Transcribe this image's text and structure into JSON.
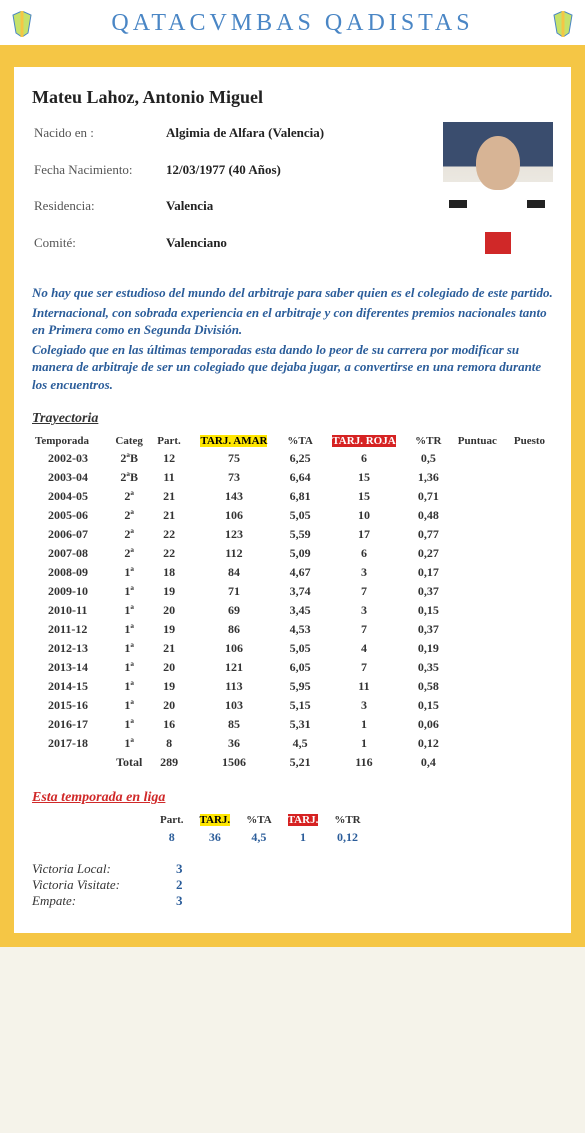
{
  "header": {
    "site_title": "QATACVMBAS QADISTAS"
  },
  "profile": {
    "name": "Mateu Lahoz, Antonio Miguel",
    "fields": [
      {
        "label": "Nacido en :",
        "value": "Algimia de Alfara   (Valencia)"
      },
      {
        "label": "Fecha Nacimiento:",
        "value": "12/03/1977   (40 Años)"
      },
      {
        "label": "Residencia:",
        "value": "Valencia"
      },
      {
        "label": "Comité:",
        "value": "Valenciano"
      }
    ]
  },
  "description": [
    "No hay que ser estudioso del mundo del arbitraje para saber quien es el colegiado de este partido.",
    "Internacional, con sobrada experiencia en el arbitraje y con diferentes premios nacionales tanto en Primera como en Segunda División.",
    "Colegiado que en las últimas temporadas esta dando lo peor de su carrera por modificar su manera de arbitraje de ser un colegiado que dejaba jugar, a convertirse en una remora durante los encuentros."
  ],
  "trajectory": {
    "title": "Trayectoria",
    "columns": [
      "Temporada",
      "Categ",
      "Part.",
      "TARJ. AMAR",
      "%TA",
      "TARJ. ROJA",
      "%TR",
      "Puntuac",
      "Puesto"
    ],
    "rows": [
      [
        "2002-03",
        "2ªB",
        "12",
        "75",
        "6,25",
        "6",
        "0,5",
        "",
        ""
      ],
      [
        "2003-04",
        "2ªB",
        "11",
        "73",
        "6,64",
        "15",
        "1,36",
        "",
        ""
      ],
      [
        "2004-05",
        "2ª",
        "21",
        "143",
        "6,81",
        "15",
        "0,71",
        "",
        ""
      ],
      [
        "2005-06",
        "2ª",
        "21",
        "106",
        "5,05",
        "10",
        "0,48",
        "",
        ""
      ],
      [
        "2006-07",
        "2ª",
        "22",
        "123",
        "5,59",
        "17",
        "0,77",
        "",
        ""
      ],
      [
        "2007-08",
        "2ª",
        "22",
        "112",
        "5,09",
        "6",
        "0,27",
        "",
        ""
      ],
      [
        "2008-09",
        "1ª",
        "18",
        "84",
        "4,67",
        "3",
        "0,17",
        "",
        ""
      ],
      [
        "2009-10",
        "1ª",
        "19",
        "71",
        "3,74",
        "7",
        "0,37",
        "",
        ""
      ],
      [
        "2010-11",
        "1ª",
        "20",
        "69",
        "3,45",
        "3",
        "0,15",
        "",
        ""
      ],
      [
        "2011-12",
        "1ª",
        "19",
        "86",
        "4,53",
        "7",
        "0,37",
        "",
        ""
      ],
      [
        "2012-13",
        "1ª",
        "21",
        "106",
        "5,05",
        "4",
        "0,19",
        "",
        ""
      ],
      [
        "2013-14",
        "1ª",
        "20",
        "121",
        "6,05",
        "7",
        "0,35",
        "",
        ""
      ],
      [
        "2014-15",
        "1ª",
        "19",
        "113",
        "5,95",
        "11",
        "0,58",
        "",
        ""
      ],
      [
        "2015-16",
        "1ª",
        "20",
        "103",
        "5,15",
        "3",
        "0,15",
        "",
        ""
      ],
      [
        "2016-17",
        "1ª",
        "16",
        "85",
        "5,31",
        "1",
        "0,06",
        "",
        ""
      ],
      [
        "2017-18",
        "1ª",
        "8",
        "36",
        "4,5",
        "1",
        "0,12",
        "",
        ""
      ]
    ],
    "total": {
      "label": "Total",
      "values": [
        "289",
        "1506",
        "5,21",
        "116",
        "0,4"
      ]
    }
  },
  "season": {
    "title": "Esta temporada en liga",
    "columns": [
      "Part.",
      "TARJ.",
      "%TA",
      "TARJ.",
      "%TR"
    ],
    "row": [
      "8",
      "36",
      "4,5",
      "1",
      "0,12"
    ]
  },
  "results": [
    {
      "label": "Victoria Local:",
      "value": "3"
    },
    {
      "label": "Victoria Visitate:",
      "value": "2"
    },
    {
      "label": "Empate:",
      "value": "3"
    }
  ],
  "colors": {
    "frame": "#f5c645",
    "accent_blue": "#4a86c5",
    "link_blue": "#2b5d9a",
    "yellow_hi": "#ffe600",
    "red_hi": "#d62222"
  }
}
